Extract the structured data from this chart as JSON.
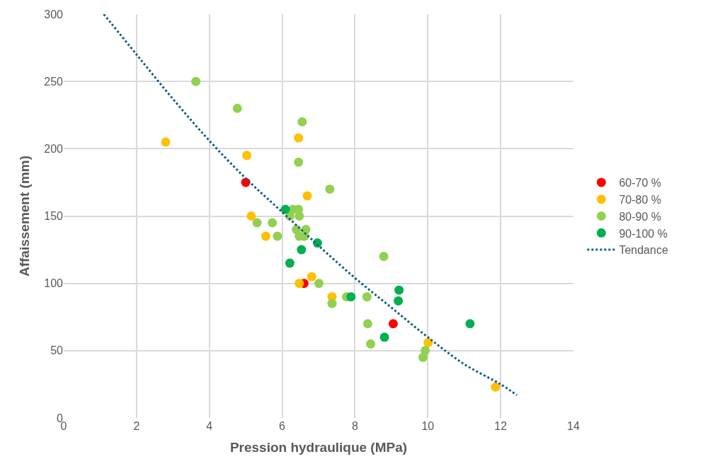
{
  "chart_data": {
    "type": "scatter",
    "xlabel": "Pression hydraulique (MPa)",
    "ylabel": "Affaissement (mm)",
    "xlim": [
      0,
      14
    ],
    "xticks": [
      0,
      2,
      4,
      6,
      8,
      10,
      12,
      14
    ],
    "ylim": [
      0,
      300
    ],
    "yticks": [
      0,
      50,
      100,
      150,
      200,
      250,
      300
    ],
    "grid": true,
    "legend": "right",
    "marker": "circle",
    "series": [
      {
        "name": "60-70 %",
        "color": "#ff0000",
        "x": [
          5.0,
          6.6,
          9.05
        ],
        "values": [
          175,
          100,
          70
        ]
      },
      {
        "name": "70-80 %",
        "color": "#ffc000",
        "x": [
          2.8,
          5.03,
          6.45,
          5.15,
          5.55,
          6.69,
          6.47,
          6.81,
          7.37,
          10.01,
          11.86
        ],
        "values": [
          205,
          195,
          208,
          150,
          135,
          165,
          100,
          105,
          90,
          56,
          23
        ]
      },
      {
        "name": "80-90 %",
        "color": "#92d050",
        "x": [
          3.63,
          4.77,
          6.55,
          6.45,
          7.31,
          6.3,
          6.45,
          6.21,
          6.47,
          5.31,
          5.73,
          5.87,
          6.39,
          6.65,
          6.47,
          6.61,
          7.01,
          7.37,
          7.77,
          8.33,
          8.35,
          8.43,
          8.79,
          9.93,
          9.87
        ],
        "values": [
          250,
          230,
          220,
          190,
          170,
          155,
          155,
          150,
          150,
          145,
          145,
          135,
          140,
          140,
          135,
          135,
          100,
          85,
          90,
          90,
          70,
          55,
          120,
          50,
          45
        ]
      },
      {
        "name": "90-100 %",
        "color": "#00b050",
        "x": [
          6.09,
          6.97,
          6.53,
          6.21,
          7.89,
          9.21,
          9.19,
          8.81,
          11.16
        ],
        "values": [
          155,
          130,
          125,
          115,
          90,
          95,
          87,
          60,
          70
        ]
      },
      {
        "name": "Tendance",
        "type": "line",
        "color": "#156082",
        "line_style": "dotted",
        "marker": "none",
        "x": [
          1.1,
          2,
          3,
          4,
          5,
          6,
          7,
          8,
          9,
          10,
          11,
          12,
          12.45
        ],
        "values": [
          300,
          270,
          237,
          206,
          178,
          153,
          128,
          104,
          82,
          60,
          40,
          25,
          17
        ]
      }
    ]
  }
}
